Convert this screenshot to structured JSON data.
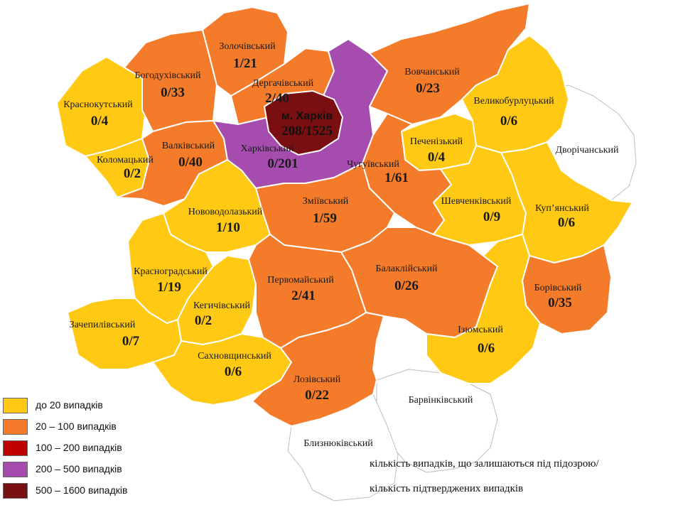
{
  "colors": {
    "low": "#FFC914",
    "mid": "#F47B2A",
    "high": "#C00000",
    "vhigh": "#A54CAE",
    "max": "#7A0F12",
    "none": "#FFFFFF",
    "border": "#BFBFBF"
  },
  "legend": [
    {
      "label": "до 20  випадків",
      "color": "#FFC914"
    },
    {
      "label": "20 – 100  випадків",
      "color": "#F47B2A"
    },
    {
      "label": "100 – 200  випадків",
      "color": "#C00000"
    },
    {
      "label": "200 – 500  випадків",
      "color": "#A54CAE"
    },
    {
      "label": "500 – 1600  випадків",
      "color": "#7A0F12"
    }
  ],
  "note": {
    "line1": "кількість випадків, що залишаються під підозрою/",
    "line2": "кількість підтверджених випадків"
  },
  "city": {
    "name": "м. Харків",
    "value": "208/1525"
  },
  "regions": {
    "zolochiv": {
      "name": "Золочівський",
      "value": "1/21"
    },
    "bohodukhiv": {
      "name": "Богодухівський",
      "value": "0/33"
    },
    "derhachi": {
      "name": "Дергачівський",
      "value": "2/40"
    },
    "vovchansk": {
      "name": "Вовчанський",
      "value": "0/23"
    },
    "krasnokutsk": {
      "name": "Краснокутський",
      "value": "0/4"
    },
    "velykyi_burluk": {
      "name": "Великобурлуцький",
      "value": "0/6"
    },
    "valky": {
      "name": "Валківський",
      "value": "0/40"
    },
    "kharkiv_raion": {
      "name": "Харківський",
      "value": "0/201"
    },
    "pechenihy": {
      "name": "Печенізький",
      "value": "0/4"
    },
    "dvorichna": {
      "name": "Дворічанський",
      "value": ""
    },
    "kolomak": {
      "name": "Коломацький",
      "value": "0/2"
    },
    "chuhuiv": {
      "name": "Чугуївський",
      "value": "1/61"
    },
    "zmiiv": {
      "name": "Зміївський",
      "value": "1/59"
    },
    "shevchenkove": {
      "name": "Шевченківський",
      "value": "0/9"
    },
    "kupiansk": {
      "name": "Куп’янський",
      "value": "0/6"
    },
    "novovodolazhsk": {
      "name": "Нововодолазький",
      "value": "1/10"
    },
    "krasnohrad": {
      "name": "Красноградський",
      "value": "1/19"
    },
    "pervomaisk": {
      "name": "Первомайський",
      "value": "2/41"
    },
    "balakliia": {
      "name": "Балаклійський",
      "value": "0/26"
    },
    "borova": {
      "name": "Борівський",
      "value": "0/35"
    },
    "kehychivka": {
      "name": "Кегичівський",
      "value": "0/2"
    },
    "zachepylivka": {
      "name": "Зачепилівський",
      "value": "0/7"
    },
    "izium": {
      "name": "Ізюмський",
      "value": "0/6"
    },
    "sakhnovshchyna": {
      "name": "Сахновщинський",
      "value": "0/6"
    },
    "lozova": {
      "name": "Лозівський",
      "value": "0/22"
    },
    "barvinkove": {
      "name": "Барвінківський",
      "value": ""
    },
    "blyzniuky": {
      "name": "Близнюківський",
      "value": ""
    }
  }
}
